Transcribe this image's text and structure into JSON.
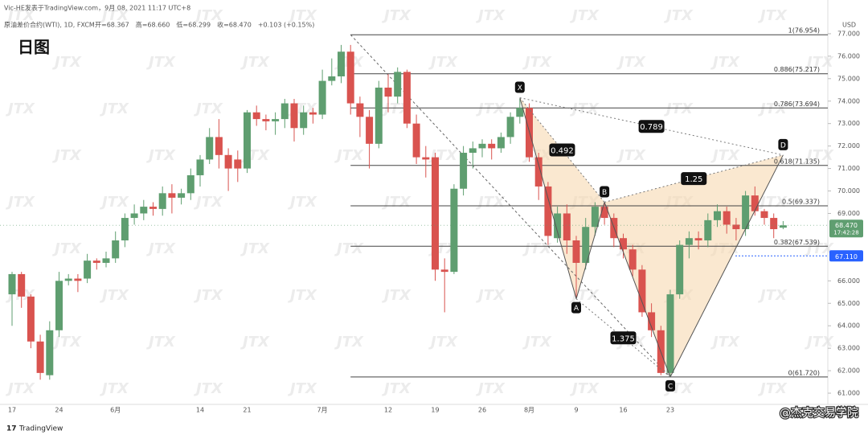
{
  "header": {
    "author_line": "Vic-HE发表于TradingView.com，9月 08, 2021 11:17 UTC+8",
    "symbol": "原油差价合约(WTI), 1D, FXCM",
    "quote": [
      "开=68.367",
      "高=68.660",
      "低=68.299",
      "收=68.470",
      "+0.103 (+0.15%)"
    ]
  },
  "chart_data": {
    "type": "candlestick",
    "title": "日图",
    "currency": "USD",
    "watermark": "JTX",
    "up_color": "#5f9e70",
    "down_color": "#d9534f",
    "categories": [
      "17",
      null,
      null,
      null,
      null,
      "24",
      null,
      null,
      null,
      null,
      null,
      "6月",
      null,
      null,
      null,
      null,
      null,
      null,
      null,
      null,
      "14",
      null,
      null,
      null,
      null,
      "21",
      null,
      null,
      null,
      null,
      null,
      null,
      null,
      "7月",
      null,
      null,
      null,
      null,
      null,
      null,
      "12",
      null,
      null,
      null,
      null,
      "19",
      null,
      null,
      null,
      null,
      "26",
      null,
      null,
      null,
      null,
      "8月",
      null,
      null,
      null,
      null,
      "9",
      null,
      null,
      null,
      null,
      "16",
      null,
      null,
      null,
      null,
      "23",
      null,
      null,
      null,
      null,
      null,
      null,
      null,
      null,
      null,
      null,
      null,
      null
    ],
    "open": [
      65.4,
      66.3,
      65.3,
      63.3,
      61.8,
      63.8,
      66.0,
      66.1,
      66.1,
      66.9,
      66.8,
      67.0,
      67.8,
      68.8,
      69.0,
      69.3,
      69.2,
      69.9,
      69.7,
      69.9,
      70.7,
      71.4,
      72.4,
      71.6,
      71.4,
      71.0,
      73.5,
      73.2,
      73.1,
      73.2,
      73.9,
      72.8,
      73.5,
      73.4,
      74.9,
      75.1,
      76.2,
      73.9,
      73.3,
      72.1,
      74.6,
      74.2,
      75.3,
      73.0,
      71.5,
      71.5,
      66.5,
      66.4,
      70.1,
      71.7,
      71.9,
      72.1,
      71.9,
      72.4,
      73.3,
      73.7,
      71.5,
      70.2,
      67.9,
      69.0,
      67.8,
      66.8,
      68.4,
      69.3,
      68.8,
      67.9,
      67.4,
      66.5,
      64.6,
      63.8,
      61.9,
      65.4,
      67.6,
      67.9,
      67.8,
      68.7,
      69.1,
      68.5,
      68.3,
      69.8,
      69.1,
      68.8,
      68.367
    ],
    "high": [
      66.4,
      66.4,
      65.4,
      63.6,
      64.2,
      66.4,
      66.3,
      66.3,
      67.2,
      67.0,
      67.3,
      68.2,
      69.0,
      69.4,
      69.6,
      69.5,
      70.2,
      70.3,
      70.1,
      71.0,
      71.6,
      72.8,
      73.2,
      71.9,
      71.8,
      73.6,
      73.8,
      73.4,
      73.5,
      74.1,
      74.1,
      73.8,
      73.7,
      75.4,
      75.9,
      76.5,
      76.5,
      74.2,
      73.6,
      74.9,
      75.2,
      75.5,
      75.4,
      73.4,
      72.0,
      71.7,
      67.0,
      70.3,
      72.0,
      72.2,
      72.3,
      72.3,
      72.6,
      73.5,
      74.1,
      73.9,
      71.7,
      70.4,
      69.3,
      69.4,
      68.0,
      68.8,
      69.5,
      69.5,
      69.0,
      68.1,
      67.6,
      66.7,
      65.0,
      64.0,
      65.6,
      67.8,
      68.2,
      68.2,
      69.0,
      69.4,
      69.3,
      68.8,
      70.0,
      70.2,
      69.2,
      69.0,
      68.66
    ],
    "low": [
      64.0,
      64.8,
      63.0,
      61.6,
      61.6,
      63.5,
      65.8,
      65.5,
      65.9,
      66.5,
      66.6,
      66.8,
      67.5,
      68.5,
      68.7,
      68.9,
      68.9,
      69.0,
      69.4,
      69.6,
      70.2,
      71.2,
      71.0,
      70.0,
      70.4,
      70.8,
      72.9,
      72.7,
      72.5,
      72.8,
      72.2,
      72.5,
      73.0,
      73.2,
      74.7,
      74.8,
      73.4,
      72.4,
      71.0,
      71.9,
      73.5,
      73.9,
      72.8,
      71.2,
      70.6,
      66.0,
      64.6,
      66.3,
      69.8,
      71.0,
      71.5,
      71.4,
      71.7,
      72.1,
      73.0,
      71.3,
      69.6,
      67.6,
      67.7,
      67.2,
      65.2,
      66.5,
      68.0,
      68.5,
      67.5,
      67.0,
      66.2,
      64.4,
      63.5,
      61.8,
      61.72,
      65.2,
      67.0,
      67.4,
      67.5,
      68.4,
      68.1,
      67.8,
      68.0,
      68.9,
      68.5,
      67.9,
      68.299
    ],
    "close": [
      66.3,
      65.3,
      63.3,
      61.9,
      63.8,
      66.0,
      66.1,
      66.0,
      66.9,
      66.8,
      67.0,
      67.8,
      68.8,
      69.0,
      69.3,
      69.2,
      69.9,
      69.7,
      69.9,
      70.7,
      71.4,
      72.4,
      71.6,
      71.0,
      71.0,
      73.5,
      73.2,
      73.1,
      73.2,
      73.9,
      72.8,
      73.5,
      73.4,
      74.9,
      75.1,
      76.2,
      73.9,
      73.3,
      72.1,
      74.6,
      74.2,
      75.3,
      73.0,
      71.5,
      71.4,
      66.5,
      66.4,
      70.1,
      71.7,
      71.9,
      72.1,
      71.9,
      72.4,
      73.3,
      73.7,
      71.5,
      70.2,
      68.0,
      69.0,
      67.8,
      66.8,
      68.4,
      69.3,
      68.8,
      67.9,
      67.4,
      66.5,
      64.6,
      63.8,
      61.9,
      65.4,
      67.6,
      67.9,
      67.8,
      68.7,
      69.1,
      68.5,
      68.3,
      69.8,
      69.1,
      68.8,
      68.3,
      68.47
    ],
    "ylim": [
      60.5,
      78.5
    ],
    "yticks": [
      {
        "value": 61,
        "label": "61.000"
      },
      {
        "value": 62,
        "label": "62.000"
      },
      {
        "value": 63,
        "label": "63.000"
      },
      {
        "value": 64,
        "label": "64.000"
      },
      {
        "value": 65,
        "label": "65.000"
      },
      {
        "value": 66,
        "label": "66.000"
      },
      {
        "value": 69,
        "label": "69.000"
      },
      {
        "value": 70,
        "label": "70.000"
      },
      {
        "value": 71,
        "label": "71.000"
      },
      {
        "value": 72,
        "label": "72.000"
      },
      {
        "value": 73,
        "label": "73.000"
      },
      {
        "value": 74,
        "label": "74.000"
      },
      {
        "value": 75,
        "label": "75.000"
      },
      {
        "value": 76,
        "label": "76.000"
      },
      {
        "value": 77,
        "label": "77.000"
      }
    ],
    "fib_levels": [
      {
        "value": 76.954,
        "label": "1(76.954)"
      },
      {
        "value": 75.217,
        "label": "0.886(75.217)"
      },
      {
        "value": 73.694,
        "label": "0.786(73.694)"
      },
      {
        "value": 71.135,
        "label": "0.618(71.135)"
      },
      {
        "value": 69.337,
        "label": "0.5(69.337)"
      },
      {
        "value": 67.539,
        "label": "0.382(67.539)"
      },
      {
        "value": 61.72,
        "label": "0(61.720)"
      }
    ],
    "fib_start_index": 36,
    "trendline": {
      "start": {
        "index": 36,
        "value": 76.954
      },
      "end": {
        "index": 70,
        "value": 61.72
      }
    },
    "pattern": [
      {
        "label": "X",
        "index": 54,
        "value": 74.15
      },
      {
        "label": "A",
        "index": 60,
        "value": 65.2
      },
      {
        "label": "B",
        "index": 63,
        "value": 69.5
      },
      {
        "label": "C",
        "index": 70,
        "value": 61.72
      },
      {
        "label": "D",
        "index": 82,
        "value": 71.6
      }
    ],
    "ratios": [
      {
        "value": 0.492,
        "from": 0,
        "to": 2
      },
      {
        "value": 0.789,
        "from": 0,
        "to": 4
      },
      {
        "value": 1.25,
        "from": 2,
        "to": 4
      },
      {
        "value": 1.375,
        "from": 1,
        "to": 3
      }
    ],
    "last_price": {
      "value": 68.47,
      "label": "68.470",
      "countdown": "17:42:28"
    },
    "alert_line": {
      "value": 67.11,
      "label": "67.110"
    }
  },
  "footer": {
    "logo": "TradingView",
    "credit": "@杰克交易学院"
  }
}
